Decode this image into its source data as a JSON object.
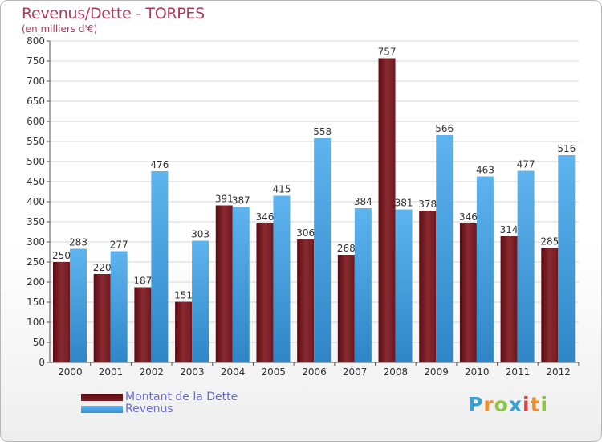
{
  "chart_data": {
    "type": "bar",
    "title": "Revenus/Dette - TORPES",
    "subtitle": "(en milliers d'€)",
    "categories": [
      "2000",
      "2001",
      "2002",
      "2003",
      "2004",
      "2005",
      "2006",
      "2007",
      "2008",
      "2009",
      "2010",
      "2011",
      "2012"
    ],
    "series": [
      {
        "name": "Montant de la Dette",
        "color": "#7a1c22",
        "values": [
          250,
          220,
          187,
          151,
          391,
          346,
          306,
          268,
          757,
          378,
          346,
          314,
          285
        ]
      },
      {
        "name": "Revenus",
        "color": "#4fa7e3",
        "values": [
          283,
          277,
          476,
          303,
          387,
          415,
          558,
          384,
          381,
          566,
          463,
          477,
          516
        ]
      }
    ],
    "ylim": [
      0,
      800
    ],
    "yticks": [
      0,
      50,
      100,
      150,
      200,
      250,
      300,
      350,
      400,
      450,
      500,
      550,
      600,
      650,
      700,
      750,
      800
    ],
    "grid": true,
    "legend": "bottom-left"
  },
  "brand": {
    "letters": [
      "P",
      "r",
      "o",
      "x",
      "i",
      "t",
      "i"
    ]
  }
}
